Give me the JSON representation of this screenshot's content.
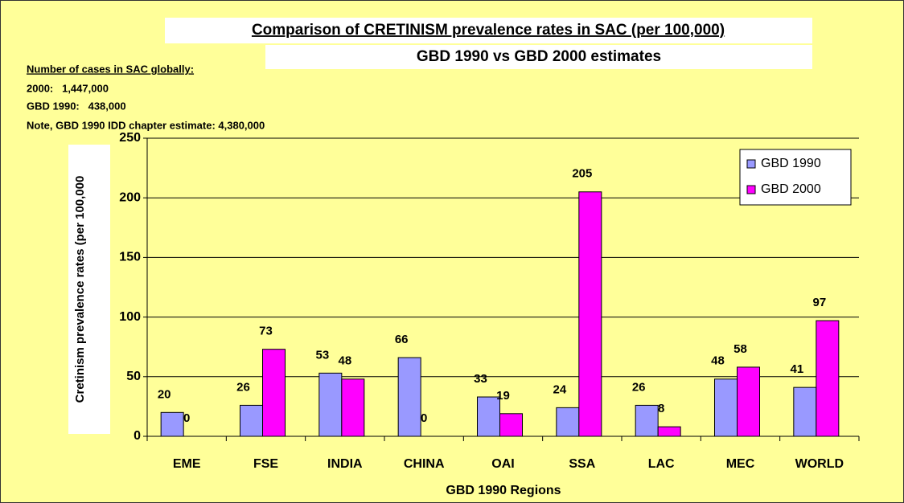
{
  "chart_data": {
    "type": "bar",
    "title": "Comparison of CRETINISM prevalence rates in SAC (per 100,000)",
    "subtitle": "GBD 1990 vs GBD 2000 estimates",
    "annotations": [
      "Number of cases in SAC globally:",
      "2000:   1,447,000",
      "GBD 1990:   438,000",
      "Note, GBD 1990 IDD chapter estimate: 4,380,000"
    ],
    "y_label": "Cretinism prevalence rates (per 100,000",
    "x_label": "GBD 1990 Regions",
    "categories": [
      "EME",
      "FSE",
      "INDIA",
      "CHINA",
      "OAI",
      "SSA",
      "LAC",
      "MEC",
      "WORLD"
    ],
    "series": [
      {
        "name": "GBD 1990",
        "color": "#9999ff",
        "values": [
          20,
          26,
          53,
          66,
          33,
          24,
          26,
          48,
          41
        ]
      },
      {
        "name": "GBD 2000",
        "color": "#ff00ff",
        "values": [
          0,
          73,
          48,
          0,
          19,
          205,
          8,
          58,
          97
        ]
      }
    ],
    "ylim": [
      0,
      250
    ],
    "yticks": [
      0,
      50,
      100,
      150,
      200,
      250
    ],
    "grid": true,
    "legend": "upper right"
  }
}
